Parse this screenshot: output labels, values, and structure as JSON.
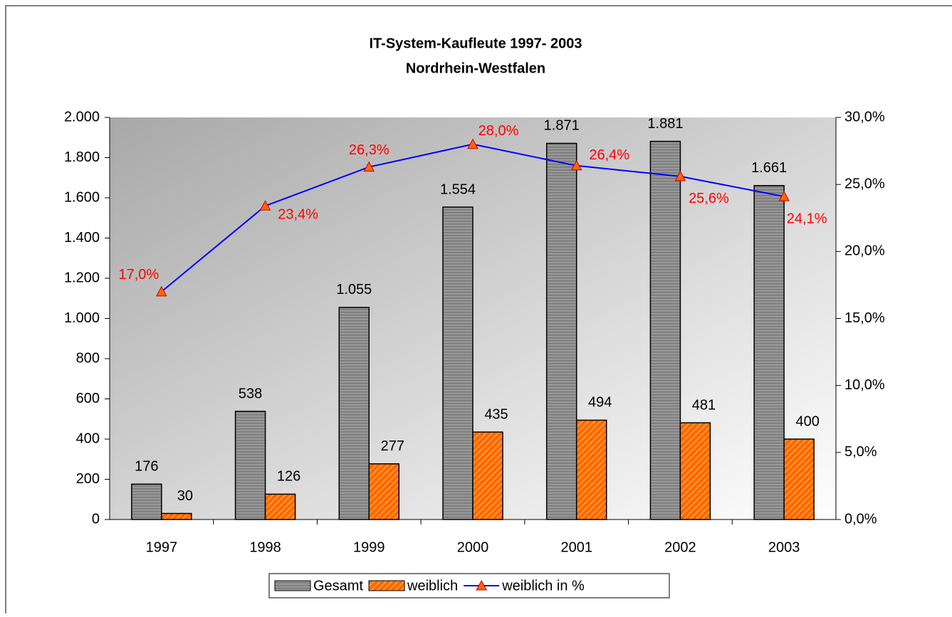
{
  "chart_data": {
    "type": "bar",
    "title": "IT-System-Kaufleute 1997- 2003",
    "subtitle": "Nordrhein-Westfalen",
    "categories": [
      "1997",
      "1998",
      "1999",
      "2000",
      "2001",
      "2002",
      "2003"
    ],
    "series": [
      {
        "name": "Gesamt",
        "color": "#808080",
        "values": [
          176,
          538,
          1055,
          1554,
          1871,
          1881,
          1661
        ],
        "value_labels": [
          "176",
          "538",
          "1.055",
          "1.554",
          "1.871",
          "1.881",
          "1.661"
        ]
      },
      {
        "name": "weiblich",
        "color": "#ff6600",
        "values": [
          30,
          126,
          277,
          435,
          494,
          481,
          400
        ]
      },
      {
        "name": "weiblich in %",
        "type": "line",
        "axis": "y2",
        "color": "#0000ff",
        "marker_color": "#ff6600",
        "label_color": "#ff0000",
        "values": [
          17.0,
          23.4,
          26.3,
          28.0,
          26.4,
          25.6,
          24.1
        ],
        "value_labels": [
          "17,0%",
          "23,4%",
          "26,3%",
          "28,0%",
          "26,4%",
          "25,6%",
          "24,1%"
        ]
      }
    ],
    "ylim": [
      0,
      2000
    ],
    "yticks": [
      0,
      200,
      400,
      600,
      800,
      {
        "value": 1000,
        "label": "1.000"
      },
      {
        "value": 1200,
        "label": "1.200"
      },
      {
        "value": 1400,
        "label": "1.400"
      },
      {
        "value": 1600,
        "label": "1.600"
      },
      {
        "value": 1800,
        "label": "1.800"
      },
      {
        "value": 2000,
        "label": "2.000"
      }
    ],
    "y2lim": [
      0,
      30
    ],
    "y2ticks": [
      {
        "value": 0,
        "label": "0,0%"
      },
      {
        "value": 5,
        "label": "5,0%"
      },
      {
        "value": 10,
        "label": "10,0%"
      },
      {
        "value": 15,
        "label": "15,0%"
      },
      {
        "value": 20,
        "label": "20,0%"
      },
      {
        "value": 25,
        "label": "25,0%"
      },
      {
        "value": 30,
        "label": "30,0%"
      }
    ],
    "legend": "bottom"
  }
}
